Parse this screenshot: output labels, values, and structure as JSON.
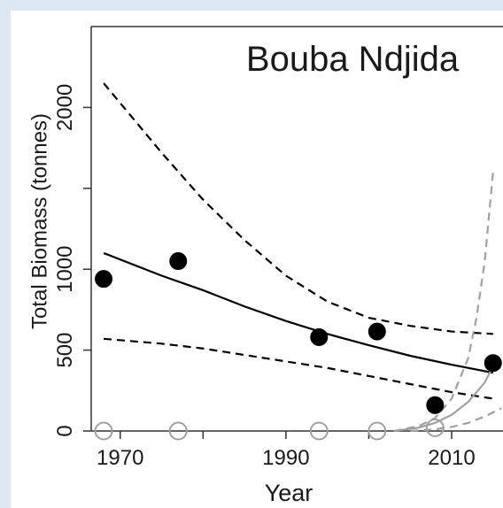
{
  "chart_data": {
    "type": "scatter",
    "title": "Bouba Ndjida",
    "xlabel": "Year",
    "ylabel": "Total Biomass (tonnes)",
    "xlim": [
      1966.5,
      2016.2
    ],
    "ylim": [
      0,
      2500
    ],
    "xticks": [
      1970,
      1990,
      2010
    ],
    "minor_xticks": [
      1980,
      2000
    ],
    "yticks": [
      0,
      500,
      1000,
      2000
    ],
    "minor_yticks": [
      1500
    ],
    "series": [
      {
        "style": "solid",
        "color": "#000000",
        "x": [
          1968,
          1975,
          1980,
          1985,
          1990,
          1995,
          2000,
          2005,
          2010,
          2015
        ],
        "values": [
          1100,
          960,
          870,
          770,
          680,
          600,
          530,
          465,
          410,
          360
        ]
      },
      {
        "style": "dashed",
        "color": "#000000",
        "x": [
          1968,
          1975,
          1980,
          1985,
          1990,
          1995,
          2000,
          2005,
          2010,
          2015
        ],
        "values": [
          2150,
          1720,
          1430,
          1180,
          960,
          800,
          700,
          650,
          615,
          600
        ]
      },
      {
        "style": "dashed",
        "color": "#000000",
        "x": [
          1968,
          1975,
          1980,
          1985,
          1990,
          1995,
          2000,
          2005,
          2010,
          2015
        ],
        "values": [
          570,
          540,
          510,
          470,
          430,
          390,
          340,
          290,
          240,
          200
        ]
      },
      {
        "style": "solid",
        "color": "#a0a0a0",
        "x": [
          2003,
          2006,
          2008,
          2010,
          2012,
          2014,
          2015
        ],
        "values": [
          0,
          20,
          50,
          100,
          180,
          300,
          400
        ]
      },
      {
        "style": "dashed",
        "color": "#a0a0a0",
        "x": [
          2003,
          2006,
          2008,
          2010,
          2012,
          2013,
          2014,
          2015
        ],
        "values": [
          0,
          30,
          80,
          200,
          450,
          700,
          1050,
          1600
        ]
      },
      {
        "style": "dashed",
        "color": "#a0a0a0",
        "x": [
          2005,
          2008,
          2010,
          2012,
          2014,
          2016
        ],
        "values": [
          0,
          10,
          25,
          50,
          90,
          140
        ]
      },
      {
        "style": "open",
        "color": "#a0a0a0",
        "x": [
          1968,
          1977,
          1994,
          2001,
          2008
        ],
        "values": [
          0,
          0,
          0,
          0,
          20
        ]
      },
      {
        "style": "filled",
        "color": "#000000",
        "x": [
          1968,
          1977,
          1994,
          2001,
          2008,
          2015
        ],
        "values": [
          940,
          1050,
          580,
          615,
          160,
          420
        ]
      }
    ]
  }
}
